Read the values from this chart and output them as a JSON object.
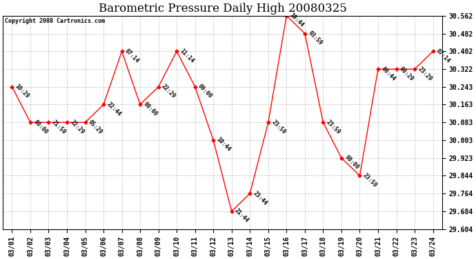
{
  "title": "Barometric Pressure Daily High 20080325",
  "copyright": "Copyright 2008 Cartronics.com",
  "x_labels": [
    "03/01",
    "03/02",
    "03/03",
    "03/04",
    "03/05",
    "03/06",
    "03/07",
    "03/08",
    "03/09",
    "03/10",
    "03/11",
    "03/12",
    "03/13",
    "03/14",
    "03/15",
    "03/16",
    "03/17",
    "03/18",
    "03/19",
    "03/20",
    "03/21",
    "03/22",
    "03/23",
    "03/24"
  ],
  "y_values": [
    30.243,
    30.083,
    30.083,
    30.083,
    30.083,
    30.163,
    30.402,
    30.163,
    30.243,
    30.402,
    30.243,
    30.003,
    29.684,
    29.764,
    30.083,
    30.562,
    30.482,
    30.083,
    29.923,
    29.844,
    30.322,
    30.322,
    30.322,
    30.402
  ],
  "time_labels": [
    "10:29",
    "00:00",
    "21:59",
    "22:29",
    "05:29",
    "22:44",
    "07:14",
    "00:00",
    "22:29",
    "11:14",
    "00:00",
    "10:44",
    "21:44",
    "23:44",
    "23:59",
    "19:44",
    "03:59",
    "23:59",
    "00:00",
    "23:59",
    "00:44",
    "00:29",
    "23:29",
    "07:14"
  ],
  "ylim_min": 29.604,
  "ylim_max": 30.562,
  "yticks": [
    29.604,
    29.684,
    29.764,
    29.844,
    29.923,
    30.003,
    30.083,
    30.163,
    30.243,
    30.322,
    30.402,
    30.482,
    30.562
  ],
  "line_color": "red",
  "marker_color": "red",
  "bg_color": "white",
  "grid_color": "#bbbbbb",
  "title_fontsize": 12,
  "annotation_fontsize": 6,
  "tick_fontsize": 7
}
